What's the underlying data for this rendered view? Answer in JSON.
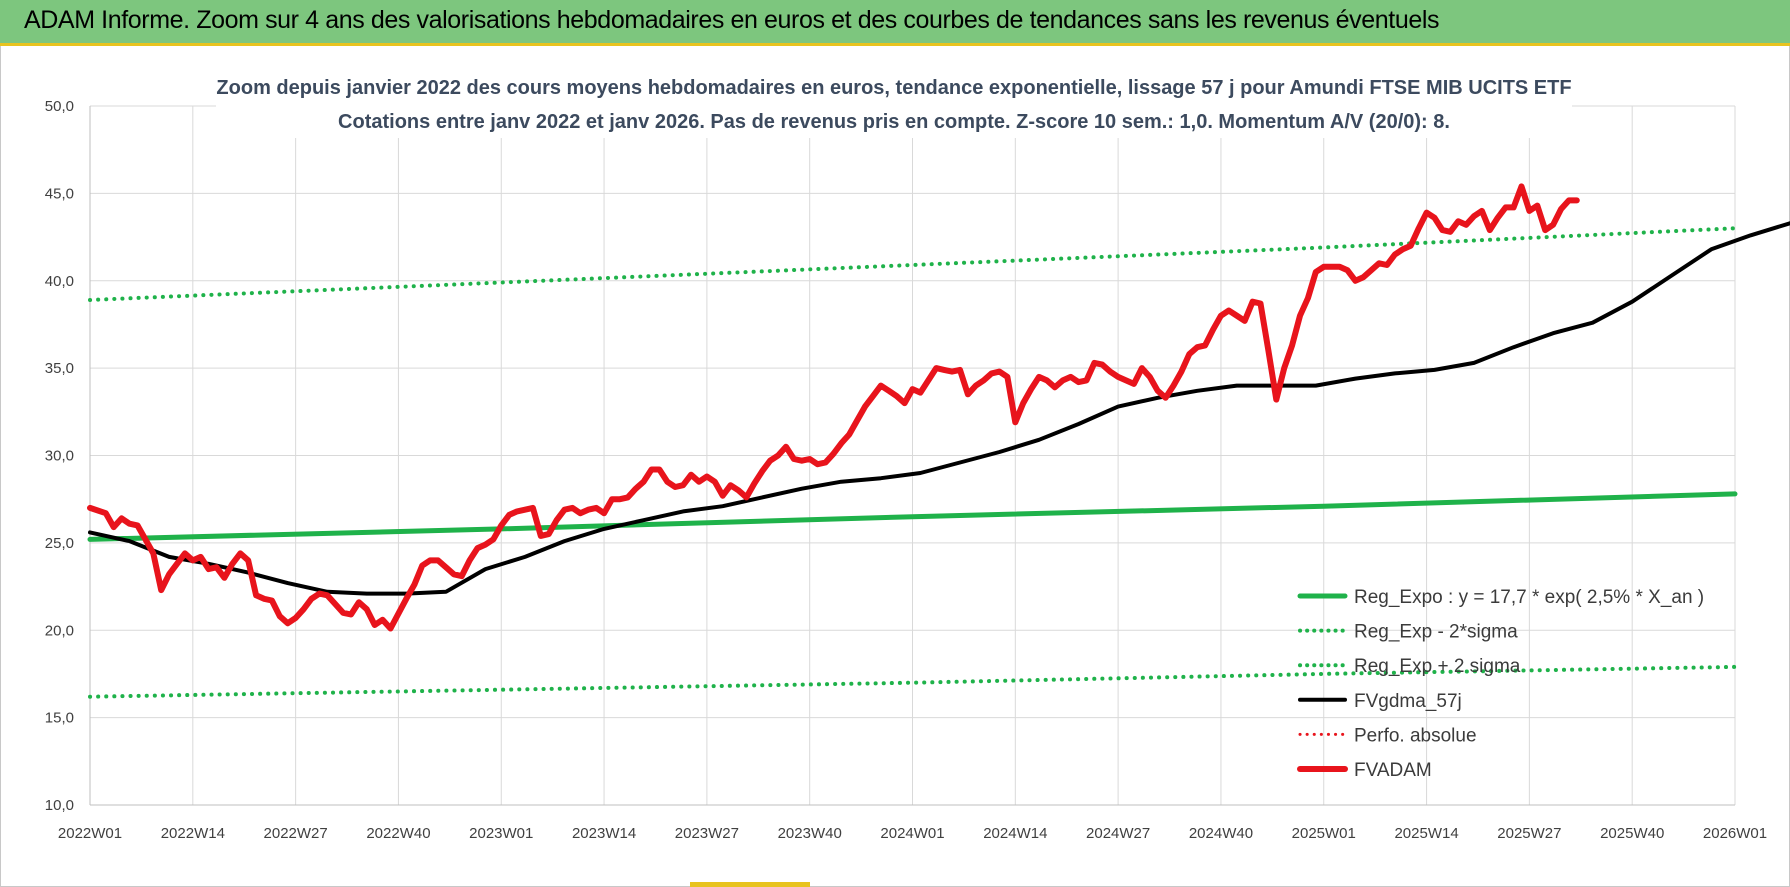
{
  "banner": {
    "title": "ADAM Informe. Zoom sur 4 ans des valorisations hebdomadaires en euros et des courbes de tendances sans les revenus éventuels"
  },
  "chart_data": {
    "type": "line",
    "title_lines": [
      "Zoom depuis janvier 2022 des cours moyens hebdomadaires en euros, tendance exponentielle, lissage 57 j pour Amundi FTSE MIB UCITS ETF",
      "Cotations entre janv 2022 et janv 2026. Pas de revenus pris en compte. Z-score 10 sem.: 1,0. Momentum A/V (20/0): 8."
    ],
    "x_tick_labels": [
      "2022W01",
      "2022W14",
      "2022W27",
      "2022W40",
      "2023W01",
      "2023W14",
      "2023W27",
      "2023W40",
      "2024W01",
      "2024W14",
      "2024W27",
      "2024W40",
      "2025W01",
      "2025W14",
      "2025W27",
      "2025W40",
      "2026W01"
    ],
    "y_tick_labels": [
      "10,0",
      "15,0",
      "20,0",
      "25,0",
      "30,0",
      "35,0",
      "40,0",
      "45,0",
      "50,0"
    ],
    "ylim": [
      10,
      50
    ],
    "grid": true,
    "legend_position": "bottom-right",
    "series": [
      {
        "name": "Reg_Expo : y = 17,7 * exp( 2,5% *  X_an )",
        "color": "#1fb24a",
        "style": "solid",
        "width": 5,
        "values": [
          [
            0,
            25.2
          ],
          [
            52,
            25.8
          ],
          [
            104,
            26.5
          ],
          [
            156,
            27.1
          ],
          [
            208,
            27.8
          ]
        ]
      },
      {
        "name": "Reg_Exp - 2*sigma",
        "color": "#1fb24a",
        "style": "dotted",
        "width": 4,
        "values": [
          [
            0,
            16.2
          ],
          [
            52,
            16.6
          ],
          [
            104,
            17.0
          ],
          [
            156,
            17.5
          ],
          [
            208,
            17.9
          ]
        ]
      },
      {
        "name": "Reg_Exp + 2 sigma",
        "color": "#1fb24a",
        "style": "dotted",
        "width": 4,
        "values": [
          [
            0,
            38.9
          ],
          [
            52,
            39.9
          ],
          [
            104,
            40.9
          ],
          [
            156,
            41.9
          ],
          [
            208,
            43.0
          ]
        ]
      },
      {
        "name": "FVgdma_57j",
        "color": "#000000",
        "style": "solid",
        "width": 4,
        "values": [
          [
            0,
            25.6
          ],
          [
            5,
            25.1
          ],
          [
            10,
            24.2
          ],
          [
            15,
            23.8
          ],
          [
            20,
            23.3
          ],
          [
            25,
            22.7
          ],
          [
            30,
            22.2
          ],
          [
            35,
            22.1
          ],
          [
            40,
            22.1
          ],
          [
            45,
            22.2
          ],
          [
            50,
            23.5
          ],
          [
            55,
            24.2
          ],
          [
            60,
            25.1
          ],
          [
            65,
            25.8
          ],
          [
            70,
            26.3
          ],
          [
            75,
            26.8
          ],
          [
            80,
            27.1
          ],
          [
            85,
            27.6
          ],
          [
            90,
            28.1
          ],
          [
            95,
            28.5
          ],
          [
            100,
            28.7
          ],
          [
            105,
            29.0
          ],
          [
            110,
            29.6
          ],
          [
            115,
            30.2
          ],
          [
            120,
            30.9
          ],
          [
            125,
            31.8
          ],
          [
            130,
            32.8
          ],
          [
            135,
            33.3
          ],
          [
            140,
            33.7
          ],
          [
            145,
            34.0
          ],
          [
            150,
            34.0
          ],
          [
            155,
            34.0
          ],
          [
            160,
            34.4
          ],
          [
            165,
            34.7
          ],
          [
            170,
            34.9
          ],
          [
            175,
            35.3
          ],
          [
            180,
            36.2
          ],
          [
            185,
            37.0
          ],
          [
            190,
            37.6
          ],
          [
            195,
            38.8
          ],
          [
            200,
            40.3
          ],
          [
            205,
            41.8
          ],
          [
            210,
            42.6
          ],
          [
            215,
            43.3
          ],
          [
            220,
            43.8
          ],
          [
            224,
            44.2
          ]
        ]
      },
      {
        "name": "Perfo. absolue",
        "color": "#e8141c",
        "style": "dotted",
        "width": 3,
        "values": []
      },
      {
        "name": "FVADAM",
        "color": "#e8141c",
        "style": "solid",
        "width": 6,
        "values": [
          [
            0,
            27.0
          ],
          [
            2,
            26.7
          ],
          [
            3,
            25.9
          ],
          [
            4,
            26.4
          ],
          [
            5,
            26.1
          ],
          [
            6,
            26.0
          ],
          [
            8,
            24.4
          ],
          [
            9,
            22.3
          ],
          [
            10,
            23.2
          ],
          [
            11,
            23.8
          ],
          [
            12,
            24.4
          ],
          [
            13,
            24.0
          ],
          [
            14,
            24.2
          ],
          [
            15,
            23.5
          ],
          [
            16,
            23.6
          ],
          [
            17,
            23.0
          ],
          [
            18,
            23.8
          ],
          [
            19,
            24.4
          ],
          [
            20,
            24.0
          ],
          [
            21,
            22.0
          ],
          [
            22,
            21.8
          ],
          [
            23,
            21.7
          ],
          [
            24,
            20.8
          ],
          [
            25,
            20.4
          ],
          [
            26,
            20.7
          ],
          [
            27,
            21.2
          ],
          [
            28,
            21.8
          ],
          [
            29,
            22.1
          ],
          [
            30,
            22.0
          ],
          [
            31,
            21.5
          ],
          [
            32,
            21.0
          ],
          [
            33,
            20.9
          ],
          [
            34,
            21.6
          ],
          [
            35,
            21.2
          ],
          [
            36,
            20.3
          ],
          [
            37,
            20.6
          ],
          [
            38,
            20.1
          ],
          [
            40,
            21.8
          ],
          [
            41,
            22.6
          ],
          [
            42,
            23.7
          ],
          [
            43,
            24.0
          ],
          [
            44,
            24.0
          ],
          [
            45,
            23.6
          ],
          [
            46,
            23.2
          ],
          [
            47,
            23.1
          ],
          [
            48,
            24.0
          ],
          [
            49,
            24.7
          ],
          [
            50,
            24.9
          ],
          [
            51,
            25.2
          ],
          [
            52,
            26.0
          ],
          [
            53,
            26.6
          ],
          [
            54,
            26.8
          ],
          [
            55,
            26.9
          ],
          [
            56,
            27.0
          ],
          [
            57,
            25.4
          ],
          [
            58,
            25.5
          ],
          [
            59,
            26.3
          ],
          [
            60,
            26.9
          ],
          [
            61,
            27.0
          ],
          [
            62,
            26.7
          ],
          [
            63,
            26.9
          ],
          [
            64,
            27.0
          ],
          [
            65,
            26.7
          ],
          [
            66,
            27.5
          ],
          [
            67,
            27.5
          ],
          [
            68,
            27.6
          ],
          [
            69,
            28.1
          ],
          [
            70,
            28.5
          ],
          [
            71,
            29.2
          ],
          [
            72,
            29.2
          ],
          [
            73,
            28.5
          ],
          [
            74,
            28.2
          ],
          [
            75,
            28.3
          ],
          [
            76,
            28.9
          ],
          [
            77,
            28.5
          ],
          [
            78,
            28.8
          ],
          [
            79,
            28.5
          ],
          [
            80,
            27.7
          ],
          [
            81,
            28.3
          ],
          [
            82,
            28.0
          ],
          [
            83,
            27.6
          ],
          [
            84,
            28.4
          ],
          [
            85,
            29.1
          ],
          [
            86,
            29.7
          ],
          [
            87,
            30.0
          ],
          [
            88,
            30.5
          ],
          [
            89,
            29.8
          ],
          [
            90,
            29.7
          ],
          [
            91,
            29.8
          ],
          [
            92,
            29.5
          ],
          [
            93,
            29.6
          ],
          [
            94,
            30.1
          ],
          [
            95,
            30.7
          ],
          [
            96,
            31.2
          ],
          [
            97,
            32.0
          ],
          [
            98,
            32.8
          ],
          [
            99,
            33.4
          ],
          [
            100,
            34.0
          ],
          [
            101,
            33.7
          ],
          [
            102,
            33.4
          ],
          [
            103,
            33.0
          ],
          [
            104,
            33.8
          ],
          [
            105,
            33.6
          ],
          [
            106,
            34.3
          ],
          [
            107,
            35.0
          ],
          [
            108,
            34.9
          ],
          [
            109,
            34.8
          ],
          [
            110,
            34.9
          ],
          [
            111,
            33.5
          ],
          [
            112,
            34.0
          ],
          [
            113,
            34.3
          ],
          [
            114,
            34.7
          ],
          [
            115,
            34.8
          ],
          [
            116,
            34.5
          ],
          [
            117,
            31.9
          ],
          [
            118,
            33.0
          ],
          [
            119,
            33.8
          ],
          [
            120,
            34.5
          ],
          [
            121,
            34.3
          ],
          [
            122,
            33.9
          ],
          [
            123,
            34.3
          ],
          [
            124,
            34.5
          ],
          [
            125,
            34.2
          ],
          [
            126,
            34.3
          ],
          [
            127,
            35.3
          ],
          [
            128,
            35.2
          ],
          [
            129,
            34.8
          ],
          [
            130,
            34.5
          ],
          [
            131,
            34.3
          ],
          [
            132,
            34.1
          ],
          [
            133,
            35.0
          ],
          [
            134,
            34.5
          ],
          [
            135,
            33.7
          ],
          [
            136,
            33.3
          ],
          [
            137,
            34.0
          ],
          [
            138,
            34.8
          ],
          [
            139,
            35.8
          ],
          [
            140,
            36.2
          ],
          [
            141,
            36.3
          ],
          [
            142,
            37.2
          ],
          [
            143,
            38.0
          ],
          [
            144,
            38.3
          ],
          [
            145,
            38.0
          ],
          [
            146,
            37.7
          ],
          [
            147,
            38.8
          ],
          [
            148,
            38.7
          ],
          [
            149,
            36.0
          ],
          [
            150,
            33.2
          ],
          [
            151,
            35.0
          ],
          [
            152,
            36.3
          ],
          [
            153,
            38.0
          ],
          [
            154,
            39.0
          ],
          [
            155,
            40.5
          ],
          [
            156,
            40.8
          ],
          [
            157,
            40.8
          ],
          [
            158,
            40.8
          ],
          [
            159,
            40.6
          ],
          [
            160,
            40.0
          ],
          [
            161,
            40.2
          ],
          [
            162,
            40.6
          ],
          [
            163,
            41.0
          ],
          [
            164,
            40.9
          ],
          [
            165,
            41.5
          ],
          [
            166,
            41.8
          ],
          [
            167,
            42.0
          ],
          [
            168,
            43.0
          ],
          [
            169,
            43.9
          ],
          [
            170,
            43.6
          ],
          [
            171,
            42.9
          ],
          [
            172,
            42.8
          ],
          [
            173,
            43.4
          ],
          [
            174,
            43.2
          ],
          [
            175,
            43.7
          ],
          [
            176,
            44.0
          ],
          [
            177,
            42.9
          ],
          [
            178,
            43.6
          ],
          [
            179,
            44.2
          ],
          [
            180,
            44.2
          ],
          [
            181,
            45.4
          ],
          [
            182,
            44.0
          ],
          [
            183,
            44.3
          ],
          [
            184,
            42.9
          ],
          [
            185,
            43.2
          ],
          [
            186,
            44.1
          ],
          [
            187,
            44.6
          ],
          [
            188,
            44.6
          ]
        ]
      }
    ]
  }
}
